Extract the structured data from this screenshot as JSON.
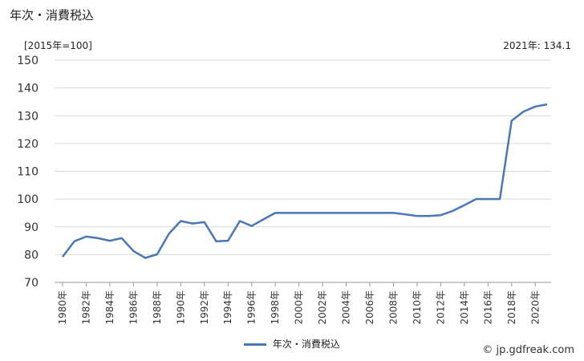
{
  "title": "年次・消費税込",
  "unit_label": "[2015年=100]",
  "latest_label": "2021年: 134.1",
  "credit": "© jp.gdfreak.com",
  "chart_data": {
    "type": "line",
    "x": [
      1980,
      1981,
      1982,
      1983,
      1984,
      1985,
      1986,
      1987,
      1988,
      1989,
      1990,
      1991,
      1992,
      1993,
      1994,
      1995,
      1996,
      1997,
      1998,
      1999,
      2000,
      2001,
      2002,
      2003,
      2004,
      2005,
      2006,
      2007,
      2008,
      2009,
      2010,
      2011,
      2012,
      2013,
      2014,
      2015,
      2016,
      2017,
      2018,
      2019,
      2020,
      2021
    ],
    "x_tick_labels": [
      "1980年",
      "1982年",
      "1984年",
      "1986年",
      "1988年",
      "1990年",
      "1992年",
      "1994年",
      "1996年",
      "1998年",
      "2000年",
      "2002年",
      "2004年",
      "2006年",
      "2008年",
      "2010年",
      "2012年",
      "2014年",
      "2016年",
      "2018年",
      "2020年"
    ],
    "y_tick_labels": [
      "70",
      "80",
      "90",
      "100",
      "110",
      "120",
      "130",
      "140",
      "150"
    ],
    "ylim": [
      70,
      150
    ],
    "grid": true,
    "legend_position": "bottom",
    "series": [
      {
        "name": "年次・消費税込",
        "color": "#4a78b5",
        "values": [
          79.2,
          84.8,
          86.5,
          85.9,
          85.0,
          85.9,
          81.3,
          78.8,
          80.1,
          87.5,
          92.1,
          91.2,
          91.7,
          84.8,
          85.0,
          92.1,
          90.3,
          92.7,
          95.0,
          95.0,
          95.0,
          95.0,
          95.0,
          95.0,
          95.0,
          95.0,
          95.0,
          95.0,
          95.0,
          94.5,
          93.9,
          93.9,
          94.2,
          95.7,
          97.8,
          100.0,
          100.0,
          100.0,
          128.2,
          131.5,
          133.3,
          134.1
        ]
      }
    ]
  }
}
